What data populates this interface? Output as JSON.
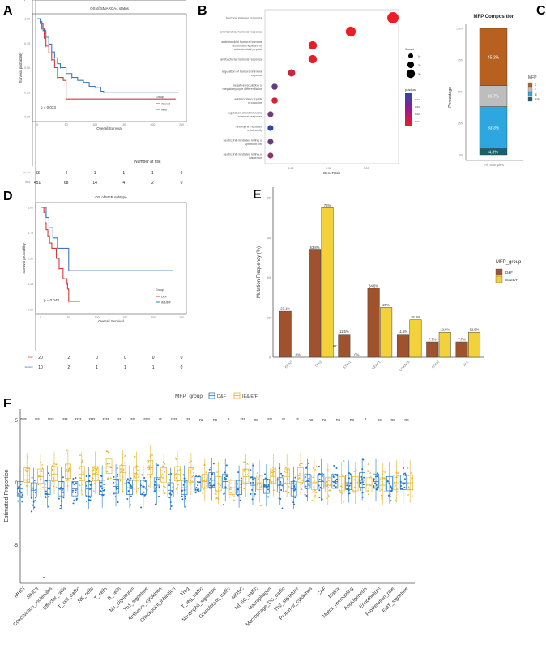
{
  "panels": {
    "A": "A",
    "B": "B",
    "C": "C",
    "D": "D",
    "E": "E",
    "F": "F"
  },
  "chart_data": [
    {
      "id": "A",
      "type": "line",
      "title": "OS of SMARCA4 status",
      "xlabel": "Overall Survival",
      "ylabel": "Survival probability",
      "xlim": [
        0,
        250
      ],
      "ylim": [
        0,
        1
      ],
      "xticks": [
        "0",
        "50",
        "100",
        "150",
        "200",
        "250"
      ],
      "yticks": [
        "0.00",
        "0.25",
        "0.50",
        "0.75",
        "1.00"
      ],
      "pvalue": "p = 0.033",
      "legend_title": "Group",
      "series": [
        {
          "name": "Altered",
          "color": "#d7393a",
          "points": [
            [
              0,
              1
            ],
            [
              5,
              0.97
            ],
            [
              8,
              0.9
            ],
            [
              12,
              0.8
            ],
            [
              15,
              0.72
            ],
            [
              20,
              0.65
            ],
            [
              25,
              0.58
            ],
            [
              30,
              0.5
            ],
            [
              35,
              0.4
            ],
            [
              45,
              0.37
            ],
            [
              50,
              0.18
            ],
            [
              240,
              0.18
            ]
          ]
        },
        {
          "name": "Wild",
          "color": "#3b78bf",
          "points": [
            [
              0,
              1
            ],
            [
              5,
              0.95
            ],
            [
              10,
              0.88
            ],
            [
              15,
              0.81
            ],
            [
              20,
              0.74
            ],
            [
              25,
              0.66
            ],
            [
              30,
              0.6
            ],
            [
              35,
              0.54
            ],
            [
              40,
              0.5
            ],
            [
              50,
              0.44
            ],
            [
              60,
              0.4
            ],
            [
              70,
              0.37
            ],
            [
              80,
              0.35
            ],
            [
              90,
              0.31
            ],
            [
              100,
              0.3
            ],
            [
              110,
              0.26
            ],
            [
              115,
              0.25
            ],
            [
              245,
              0.25
            ]
          ]
        }
      ],
      "risk_table": {
        "title": "Number at risk",
        "ylabel": "Group",
        "xlabel": "Time",
        "times": [
          "0",
          "50",
          "100",
          "150",
          "200",
          "250"
        ],
        "rows": [
          {
            "group": "Altered",
            "values": [
              "43",
              "4",
              "1",
              "1",
              "1",
              "0"
            ]
          },
          {
            "group": "Wild",
            "values": [
              "451",
              "68",
              "14",
              "4",
              "2",
              "0"
            ]
          }
        ]
      }
    },
    {
      "id": "B",
      "type": "scatter",
      "xlabel": "GeneRatio",
      "xlim": [
        0.004,
        0.039
      ],
      "xticks": [
        "0.01",
        "0.02",
        "0.03"
      ],
      "terms": [
        {
          "label": "humoral immune response",
          "ratio": 0.0371,
          "count": 33,
          "padj": 0.005
        },
        {
          "label": "antimicrobial humoral response",
          "ratio": 0.0259,
          "count": 23,
          "padj": 0.005
        },
        {
          "label": "antimicrobial humoral immune response mediated by antimicrobial peptide",
          "ratio": 0.0158,
          "count": 14,
          "padj": 0.006
        },
        {
          "label": "antibacterial humoral response",
          "ratio": 0.0158,
          "count": 14,
          "padj": 0.006
        },
        {
          "label": "regulation of humoral immune response",
          "ratio": 0.0102,
          "count": 9,
          "padj": 0.012
        },
        {
          "label": "negative regulation of megakaryocyte differentiation",
          "ratio": 0.0057,
          "count": 5,
          "padj": 0.033
        },
        {
          "label": "antimicrobial peptide production",
          "ratio": 0.0057,
          "count": 5,
          "padj": 0.01
        },
        {
          "label": "regulation of antimicrobial humoral response",
          "ratio": 0.0046,
          "count": 4,
          "padj": 0.03
        },
        {
          "label": "neutrophil mediated cytotoxicity",
          "ratio": 0.0046,
          "count": 4,
          "padj": 0.045
        },
        {
          "label": "neutrophil-mediated killing of symbiont cell",
          "ratio": 0.0046,
          "count": 4,
          "padj": 0.032
        },
        {
          "label": "neutrophil-mediated killing of bacterium",
          "ratio": 0.0046,
          "count": 4,
          "padj": 0.025
        }
      ],
      "size_legend": {
        "title": "Count",
        "values": [
          "10",
          "20",
          "30"
        ]
      },
      "color_legend": {
        "title": "p.adjust",
        "values": [
          "0.04",
          "0.03",
          "0.02",
          "0.01"
        ],
        "low": "#ee1c25",
        "high": "#2c49a8"
      }
    },
    {
      "id": "C",
      "type": "bar",
      "title": "MFP Composition",
      "ylabel": "Percentage",
      "categories": [
        "All Samples"
      ],
      "yticks": [
        "0%",
        "25%",
        "50%",
        "75%",
        "100%"
      ],
      "legend_title": "MFP",
      "segments": [
        {
          "name": "IE/F",
          "value": 4.8,
          "label": "4.8%",
          "color": "#17636a"
        },
        {
          "name": "IE",
          "value": 33.3,
          "label": "33.3%",
          "color": "#2ea7e0"
        },
        {
          "name": "F",
          "value": 16.7,
          "label": "16.7%",
          "color": "#bdbdbd"
        },
        {
          "name": "D",
          "value": 45.2,
          "label": "45.2%",
          "color": "#b8601f"
        }
      ],
      "legend_order": [
        "D",
        "F",
        "IE",
        "IE/F"
      ]
    },
    {
      "id": "D",
      "type": "line",
      "title": "OS of MFP subtype",
      "xlabel": "Overall Survival",
      "ylabel": "Survival probability",
      "xlim": [
        0,
        250
      ],
      "ylim": [
        0,
        1
      ],
      "xticks": [
        "0",
        "50",
        "100",
        "150",
        "200",
        "250"
      ],
      "yticks": [
        "0.00",
        "0.25",
        "0.50",
        "0.75",
        "1.00"
      ],
      "pvalue": "p = 0.048",
      "legend_title": "Group",
      "series": [
        {
          "name": "D&F",
          "color": "#d7393a",
          "points": [
            [
              0,
              1
            ],
            [
              6,
              0.95
            ],
            [
              8,
              0.85
            ],
            [
              10,
              0.78
            ],
            [
              13,
              0.72
            ],
            [
              16,
              0.65
            ],
            [
              20,
              0.6
            ],
            [
              28,
              0.5
            ],
            [
              33,
              0.4
            ],
            [
              40,
              0.3
            ],
            [
              47,
              0.25
            ],
            [
              48,
              0.2
            ],
            [
              50,
              0.08
            ],
            [
              70,
              0.08
            ]
          ]
        },
        {
          "name": "IE&IE/F",
          "color": "#3b78bf",
          "points": [
            [
              0,
              1
            ],
            [
              10,
              0.9
            ],
            [
              15,
              0.8
            ],
            [
              22,
              0.7
            ],
            [
              30,
              0.6
            ],
            [
              50,
              0.38
            ],
            [
              235,
              0.38
            ]
          ]
        }
      ],
      "risk_table": {
        "title": "Number at risk",
        "ylabel": "Group",
        "xlabel": "Time",
        "times": [
          "0",
          "50",
          "100",
          "150",
          "200",
          "250"
        ],
        "rows": [
          {
            "group": "D&F",
            "values": [
              "20",
              "2",
              "0",
              "0",
              "0",
              "0"
            ]
          },
          {
            "group": "IE&IE/F",
            "values": [
              "10",
              "2",
              "1",
              "1",
              "1",
              "0"
            ]
          }
        ]
      }
    },
    {
      "id": "E",
      "type": "bar",
      "ylabel": "Mutation Frequency (%)",
      "ylim": [
        0,
        85
      ],
      "yticks": [
        "0",
        "20",
        "40",
        "60",
        "80"
      ],
      "categories": [
        "KRAS",
        "TP53",
        "STK11",
        "KEAP1",
        "CDKN2A",
        "EGFR",
        "ALK"
      ],
      "legend_title": "MFP_group",
      "series": [
        {
          "name": "D&F",
          "color": "#a0522d",
          "values": [
            23.1,
            53.8,
            11.5,
            34.6,
            11.5,
            7.7,
            7.7
          ],
          "labels": [
            "23.1%",
            "53.8%",
            "11.5%",
            "34.6%",
            "11.5%",
            "7.7%",
            "7.7%"
          ]
        },
        {
          "name": "IE&IE/F",
          "color": "#f2d13a",
          "values": [
            0,
            75,
            0,
            25,
            18.8,
            12.5,
            12.5
          ],
          "labels": [
            "0%",
            "75%",
            "0%",
            "25%",
            "18.8%",
            "12.5%",
            "12.5%"
          ]
        }
      ]
    },
    {
      "id": "F",
      "type": "box",
      "ylabel": "Estimated Proportion",
      "ylim": [
        -8.3,
        5.8
      ],
      "yticks": [
        "-5",
        "0",
        "5"
      ],
      "legend_title": "MFP_group",
      "series": [
        {
          "name": "D&F",
          "color": "#1f78c8"
        },
        {
          "name": "IE&IE/F",
          "color": "#e6b42a"
        }
      ],
      "categories": [
        "MHCI",
        "MHCII",
        "Coactivation_molecules",
        "Effector_cells",
        "T_cell_traffic",
        "NK_cells",
        "T_cells",
        "B_cells",
        "M1_signatures",
        "Th1_signature",
        "Antitumor_cytokines",
        "Checkpoint_inhibition",
        "Treg",
        "T_reg_traffic",
        "Neutrophil_signature",
        "Granulocyte_traffic",
        "MDSC",
        "MDSC_traffic",
        "Macrophages",
        "Macrophage_DC_traffic",
        "Th2_signature",
        "Protumor_cytokines",
        "CAF",
        "Matrix",
        "Matrix_remodeling",
        "Angiogenesis",
        "Endothelium",
        "Proliferation_rate",
        "EMT_signature"
      ],
      "significance": [
        "****",
        "***",
        "****",
        "****",
        "****",
        "****",
        "****",
        "**",
        "***",
        "****",
        "**",
        "****",
        "***",
        "ns",
        "ns",
        "*",
        "***",
        "ns",
        "***",
        "**",
        "**",
        "ns",
        "ns",
        "ns",
        "ns",
        "*",
        "ns",
        "ns",
        "ns"
      ],
      "median_DF": [
        -0.5,
        -0.6,
        -0.4,
        -0.5,
        -0.5,
        -0.5,
        -0.4,
        -0.3,
        -0.4,
        -0.4,
        -0.2,
        -0.6,
        -0.4,
        -0.1,
        0.2,
        0.1,
        -0.4,
        -0.2,
        -0.3,
        -0.2,
        -0.5,
        0.1,
        0.1,
        0.1,
        0.0,
        0.2,
        0.1,
        -0.1,
        0.0
      ],
      "median_IEF": [
        0.6,
        0.5,
        0.7,
        0.9,
        0.7,
        0.7,
        1.3,
        0.8,
        0.7,
        1.2,
        0.6,
        0.7,
        0.6,
        0.1,
        -0.1,
        -0.4,
        0.5,
        0.0,
        0.5,
        0.5,
        0.6,
        0.0,
        -0.2,
        -0.1,
        -0.1,
        -0.2,
        -0.2,
        0.0,
        0.0
      ]
    }
  ]
}
